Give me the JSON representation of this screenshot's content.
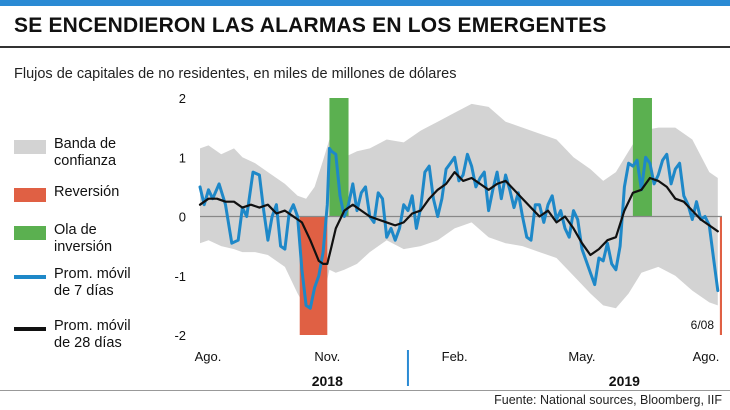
{
  "title": "SE ENCENDIERON LAS ALARMAS EN LOS EMERGENTES",
  "subtitle": "Flujos de capitales de no residentes, en miles de millones de dólares",
  "footer": "Fuente: National sources, Bloomberg, IIF",
  "colors": {
    "accent": "#2a8ad4",
    "band": "#d3d3d3",
    "reversion": "#e06044",
    "inversion": "#5bb050",
    "ma7": "#1e88c8",
    "ma28": "#111111"
  },
  "legend": [
    {
      "key": "band",
      "label": "Banda de\nconfianza"
    },
    {
      "key": "reversion",
      "label": "Reversión"
    },
    {
      "key": "inversion",
      "label": "Ola de\ninversión"
    },
    {
      "key": "ma7",
      "label": "Prom. móvil\nde 7 días"
    },
    {
      "key": "ma28",
      "label": "Prom. móvil\nde 28 días"
    }
  ],
  "chart_data": {
    "type": "line",
    "title": "",
    "ylim": [
      -2,
      2
    ],
    "yticks": [
      "2",
      "1",
      "0",
      "-1",
      "-2"
    ],
    "ytick_values": [
      2,
      1,
      0,
      -1,
      -2
    ],
    "xlim": [
      0,
      12.3
    ],
    "xticks": [
      {
        "label": "Ago.",
        "value": 0
      },
      {
        "label": "Nov.",
        "value": 3
      },
      {
        "label": "Feb.",
        "value": 6
      },
      {
        "label": "May.",
        "value": 9
      },
      {
        "label": "Ago.",
        "value": 12
      }
    ],
    "years": [
      {
        "label": "2018",
        "value": 3
      },
      {
        "label": "2019",
        "value": 10
      }
    ],
    "year_divider": 4.9,
    "annotation": {
      "text": "6/08",
      "x": 12.2
    },
    "reversion_regions": [
      {
        "from": 2.35,
        "to": 3.0,
        "y": -2
      },
      {
        "from": 12.25,
        "to": 12.3,
        "y": -2
      }
    ],
    "inversion_regions": [
      {
        "from": 3.05,
        "to": 3.5,
        "y": 2
      },
      {
        "from": 10.2,
        "to": 10.65,
        "y": 2
      }
    ],
    "band": {
      "x": [
        0,
        0.2,
        0.5,
        0.8,
        1.0,
        1.3,
        1.6,
        2.0,
        2.3,
        2.5,
        2.7,
        2.9,
        3.05,
        3.2,
        3.4,
        3.7,
        4.0,
        4.4,
        4.8,
        5.2,
        5.6,
        6.0,
        6.4,
        6.8,
        7.2,
        7.6,
        8.0,
        8.4,
        8.8,
        9.2,
        9.5,
        9.8,
        10.1,
        10.4,
        10.8,
        11.2,
        11.6,
        12.0,
        12.2
      ],
      "upper": [
        1.15,
        1.2,
        1.05,
        1.15,
        1.0,
        0.9,
        0.75,
        0.55,
        0.35,
        0.3,
        0.5,
        0.95,
        1.3,
        1.15,
        1.0,
        1.1,
        1.15,
        1.3,
        1.25,
        1.45,
        1.6,
        1.75,
        1.9,
        1.85,
        1.6,
        1.5,
        1.4,
        1.3,
        1.0,
        0.8,
        0.6,
        0.75,
        1.1,
        1.45,
        1.5,
        1.5,
        1.3,
        0.75,
        0.65
      ],
      "lower": [
        -0.45,
        -0.4,
        -0.5,
        -0.55,
        -0.6,
        -0.6,
        -0.65,
        -0.85,
        -1.3,
        -1.55,
        -1.65,
        -1.4,
        -0.9,
        -0.95,
        -0.9,
        -0.8,
        -0.6,
        -0.4,
        -0.55,
        -0.5,
        -0.4,
        -0.2,
        -0.1,
        -0.35,
        -0.45,
        -0.5,
        -0.6,
        -0.7,
        -1.0,
        -1.3,
        -1.5,
        -1.55,
        -1.3,
        -0.95,
        -0.85,
        -1.0,
        -1.25,
        -1.45,
        -1.5
      ]
    },
    "series": [
      {
        "name": "Prom. móvil de 7 días",
        "color": "#1e88c8",
        "x": [
          0,
          0.1,
          0.2,
          0.3,
          0.45,
          0.6,
          0.75,
          0.9,
          1.0,
          1.1,
          1.25,
          1.4,
          1.5,
          1.6,
          1.7,
          1.8,
          1.9,
          2.0,
          2.1,
          2.2,
          2.3,
          2.4,
          2.5,
          2.6,
          2.7,
          2.8,
          2.9,
          3.0,
          3.05,
          3.1,
          3.2,
          3.3,
          3.4,
          3.5,
          3.6,
          3.7,
          3.8,
          3.9,
          4.0,
          4.1,
          4.2,
          4.3,
          4.4,
          4.5,
          4.6,
          4.7,
          4.8,
          4.9,
          5.0,
          5.1,
          5.2,
          5.3,
          5.4,
          5.5,
          5.6,
          5.7,
          5.8,
          5.9,
          6.0,
          6.1,
          6.2,
          6.3,
          6.4,
          6.5,
          6.6,
          6.7,
          6.8,
          6.9,
          7.0,
          7.1,
          7.2,
          7.3,
          7.4,
          7.5,
          7.6,
          7.7,
          7.8,
          7.9,
          8.0,
          8.1,
          8.2,
          8.3,
          8.4,
          8.5,
          8.6,
          8.7,
          8.8,
          8.9,
          9.0,
          9.1,
          9.2,
          9.3,
          9.4,
          9.5,
          9.6,
          9.7,
          9.8,
          9.9,
          10.0,
          10.1,
          10.2,
          10.3,
          10.4,
          10.5,
          10.6,
          10.7,
          10.8,
          10.9,
          11.0,
          11.1,
          11.2,
          11.3,
          11.4,
          11.5,
          11.6,
          11.7,
          11.8,
          11.9,
          12.0,
          12.1,
          12.2
        ],
        "y": [
          0.5,
          0.2,
          0.45,
          0.3,
          0.55,
          0.2,
          -0.45,
          -0.4,
          0.15,
          0.0,
          0.75,
          0.7,
          0.1,
          -0.4,
          0.0,
          0.2,
          -0.5,
          -0.55,
          0.05,
          0.2,
          0.0,
          -0.9,
          -1.5,
          -1.55,
          -1.2,
          -1.0,
          -0.6,
          0.2,
          1.15,
          1.1,
          1.05,
          0.35,
          0.0,
          0.2,
          0.55,
          0.1,
          0.4,
          0.5,
          0.0,
          -0.1,
          0.4,
          0.3,
          -0.35,
          -0.2,
          -0.4,
          -0.2,
          0.2,
          0.1,
          0.35,
          -0.2,
          0.15,
          0.75,
          0.85,
          0.3,
          0.0,
          0.3,
          0.8,
          0.9,
          1.0,
          0.6,
          0.7,
          1.05,
          0.85,
          0.5,
          0.65,
          0.75,
          0.1,
          0.45,
          0.75,
          0.3,
          0.7,
          0.45,
          0.15,
          0.4,
          0.0,
          -0.35,
          -0.4,
          0.2,
          0.2,
          -0.1,
          0.2,
          0.35,
          -0.05,
          0.1,
          -0.2,
          -0.35,
          0.1,
          -0.05,
          -0.55,
          -0.75,
          -0.95,
          -1.15,
          -0.7,
          -0.75,
          -0.45,
          -0.8,
          -0.9,
          -0.5,
          0.5,
          0.9,
          0.85,
          0.95,
          0.45,
          1.0,
          0.9,
          0.55,
          0.7,
          0.95,
          1.05,
          0.55,
          0.8,
          0.9,
          0.35,
          0.2,
          -0.05,
          0.25,
          -0.05,
          0.0,
          -0.15,
          -0.7,
          -1.25
        ]
      },
      {
        "name": "Prom. móvil de 28 días",
        "color": "#111111",
        "x": [
          0,
          0.2,
          0.4,
          0.6,
          0.8,
          1.0,
          1.2,
          1.4,
          1.6,
          1.8,
          2.0,
          2.2,
          2.4,
          2.6,
          2.8,
          2.9,
          3.0,
          3.1,
          3.2,
          3.4,
          3.6,
          3.8,
          4.0,
          4.2,
          4.4,
          4.6,
          4.8,
          5.0,
          5.2,
          5.4,
          5.6,
          5.8,
          6.0,
          6.2,
          6.4,
          6.6,
          6.8,
          7.0,
          7.2,
          7.4,
          7.6,
          7.8,
          8.0,
          8.2,
          8.4,
          8.6,
          8.8,
          9.0,
          9.2,
          9.4,
          9.6,
          9.8,
          10.0,
          10.2,
          10.4,
          10.6,
          10.8,
          11.0,
          11.2,
          11.4,
          11.6,
          11.8,
          12.0,
          12.2
        ],
        "y": [
          0.2,
          0.3,
          0.3,
          0.25,
          0.25,
          0.15,
          0.2,
          0.15,
          0.2,
          0.05,
          0.1,
          0.0,
          -0.1,
          -0.4,
          -0.75,
          -0.8,
          -0.8,
          -0.5,
          -0.2,
          0.1,
          0.2,
          0.1,
          0.0,
          -0.05,
          -0.1,
          -0.15,
          -0.1,
          0.05,
          0.1,
          0.3,
          0.45,
          0.55,
          0.75,
          0.6,
          0.65,
          0.55,
          0.45,
          0.55,
          0.6,
          0.45,
          0.3,
          0.15,
          0.0,
          0.1,
          -0.1,
          0.0,
          -0.2,
          -0.45,
          -0.65,
          -0.55,
          -0.4,
          -0.35,
          0.1,
          0.4,
          0.45,
          0.65,
          0.6,
          0.5,
          0.3,
          0.25,
          0.1,
          -0.05,
          -0.15,
          -0.25
        ]
      }
    ]
  }
}
